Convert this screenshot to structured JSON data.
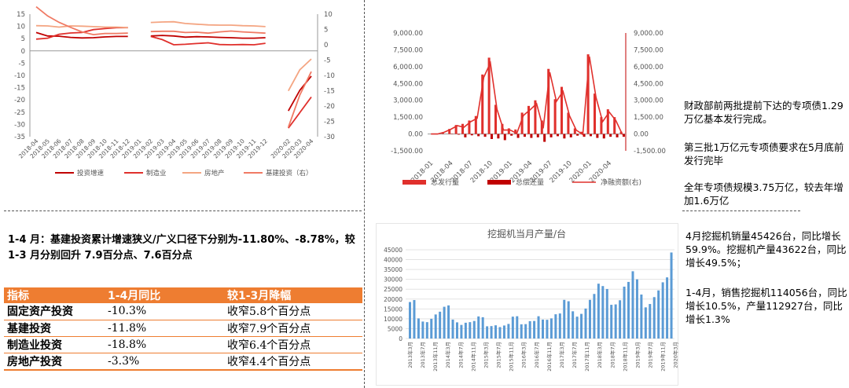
{
  "colors": {
    "dark_red": "#c00000",
    "red": "#e0302c",
    "light_orange": "#f4a582",
    "salmon": "#f07a64",
    "table_orange": "#ee7d31",
    "excavator_blue": "#5b9bd5"
  },
  "chart_data": [
    {
      "type": "line",
      "x": [
        "2018-04",
        "2018-05",
        "2018-06",
        "2018-07",
        "2018-08",
        "2018-09",
        "2018-10",
        "2018-11",
        "2018-12",
        "2019-01",
        "2019-02",
        "2019-03",
        "2019-04",
        "2019-05",
        "2019-06",
        "2019-07",
        "2019-08",
        "2019-09",
        "2019-10",
        "2019-11",
        "2019-12",
        "2020-01",
        "2020-02",
        "2020-03",
        "2020-04"
      ],
      "x_ticks": [
        "2018-04",
        "2018-05",
        "2018-06",
        "2018-07",
        "2018-08",
        "2018-09",
        "2018-10",
        "2018-11",
        "2018-12",
        "2019-01",
        "2019-02",
        "2019-03",
        "2019-04",
        "2019-05",
        "2019-06",
        "2019-07",
        "2019-08",
        "2019-09",
        "2019-10",
        "2019-11",
        "2019-12",
        "2020-02",
        "2020-03",
        "2020-04"
      ],
      "y_ticks": [
        "15",
        "10",
        "5",
        "0",
        "-5",
        "-10",
        "-15",
        "-20",
        "-25",
        "-30",
        "-35"
      ],
      "y2_ticks": [
        "10",
        "5",
        "0",
        "-5",
        "-10",
        "-15",
        "-20",
        "-25",
        "-30"
      ],
      "ylim": [
        -35,
        15
      ],
      "y2lim": [
        -30,
        10
      ],
      "grid": false,
      "legend_position": "bottom",
      "series": [
        {
          "name": "投资增速",
          "axis": "left",
          "color": "#c00000",
          "values": [
            7.5,
            6.1,
            6.0,
            5.5,
            5.3,
            5.4,
            5.7,
            5.9,
            5.9,
            null,
            6.1,
            6.3,
            6.1,
            5.6,
            5.8,
            5.7,
            5.5,
            5.4,
            5.2,
            5.2,
            5.4,
            null,
            -24.5,
            -16.1,
            -10.3
          ]
        },
        {
          "name": "制造业",
          "axis": "left",
          "color": "#e0302c",
          "values": [
            4.8,
            5.2,
            6.8,
            7.3,
            7.5,
            8.7,
            9.1,
            9.5,
            9.5,
            null,
            5.9,
            4.6,
            2.5,
            2.7,
            3.0,
            3.3,
            2.6,
            2.5,
            2.6,
            2.5,
            3.1,
            null,
            -31.5,
            -25.2,
            -18.8
          ]
        },
        {
          "name": "房地产",
          "axis": "left",
          "color": "#f4a582",
          "values": [
            10.3,
            10.2,
            9.7,
            10.2,
            10.1,
            9.9,
            9.7,
            9.7,
            9.5,
            null,
            11.6,
            11.8,
            11.9,
            11.2,
            10.9,
            10.6,
            10.5,
            10.5,
            10.3,
            10.2,
            9.9,
            null,
            -16.3,
            -7.7,
            -3.3
          ]
        },
        {
          "name": "基建投资（右）",
          "axis": "right",
          "color": "#f07a64",
          "values": [
            12.4,
            9.4,
            7.3,
            5.7,
            4.2,
            3.3,
            3.7,
            3.7,
            3.8,
            null,
            4.3,
            4.4,
            4.4,
            4.0,
            4.1,
            3.8,
            4.2,
            4.5,
            4.2,
            4.0,
            3.8,
            null,
            -26.9,
            -16.4,
            -8.78
          ]
        }
      ]
    },
    {
      "type": "bar",
      "x_ticks": [
        "2018-01",
        "2018-04",
        "2018-07",
        "2018-10",
        "2019-01",
        "2019-04",
        "2019-07",
        "2019-10",
        "2020-01",
        "2020-04"
      ],
      "y_ticks": [
        "9,000.00",
        "7,500.00",
        "6,000.00",
        "4,500.00",
        "3,000.00",
        "1,500.00",
        "0.00",
        "-1,500.00"
      ],
      "y2_ticks": [
        "9,000.00",
        "7,500.00",
        "6,000.00",
        "4,500.00",
        "3,000.00",
        "1,500.00",
        "0.00",
        "-1,500.00"
      ],
      "ylim": [
        -1500,
        9000
      ],
      "grid": false,
      "legend_position": "bottom",
      "series": [
        {
          "name": "总发行量",
          "color": "#e0302c",
          "values": [
            0,
            0,
            150,
            450,
            800,
            900,
            1200,
            1600,
            5300,
            6800,
            2600,
            900,
            500,
            400,
            1900,
            2500,
            3000,
            1200,
            5800,
            3100,
            4200,
            1900,
            500,
            200,
            7100,
            3600,
            1500,
            2200,
            1500,
            200
          ]
        },
        {
          "name": "总偿还量",
          "color": "#c00000",
          "values": [
            0,
            0,
            0,
            -30,
            -60,
            -300,
            -120,
            -200,
            -250,
            -450,
            -400,
            -550,
            -150,
            -350,
            -250,
            -350,
            -300,
            -700,
            -300,
            -200,
            -400,
            -300,
            -150,
            -250,
            -200,
            -350,
            -400,
            -250,
            -300,
            -250
          ]
        },
        {
          "name": "净融资额(右)",
          "color": "#e0302c",
          "values": [
            0,
            0,
            150,
            420,
            740,
            600,
            1080,
            1400,
            5050,
            6350,
            2200,
            350,
            350,
            50,
            1650,
            2150,
            2700,
            500,
            5500,
            2900,
            3800,
            1600,
            350,
            -50,
            6900,
            3250,
            1100,
            1950,
            1200,
            -50
          ]
        }
      ]
    },
    {
      "type": "bar",
      "title": "挖掘机当月产量/台",
      "x_ticks": [
        "2013年3月",
        "2013年7月",
        "2013年11月",
        "2014年3月",
        "2014年7月",
        "2014年11月",
        "2015年3月",
        "2015年7月",
        "2015年11月",
        "2016年3月",
        "2016年7月",
        "2016年11月",
        "2017年3月",
        "2017年7月",
        "2017年11月",
        "2018年3月",
        "2018年7月",
        "2018年11月",
        "2019年3月",
        "2019年7月",
        "2019年11月",
        "2020年3月"
      ],
      "y_ticks": [
        "45000",
        "40000",
        "35000",
        "30000",
        "25000",
        "20000",
        "15000",
        "10000",
        "5000",
        "0"
      ],
      "ylim": [
        0,
        45000
      ],
      "grid": true,
      "legend_position": "none",
      "series": [
        {
          "name": "挖掘机当月产量",
          "color": "#5b9bd5",
          "values": [
            18500,
            19500,
            10200,
            8600,
            8300,
            10000,
            12200,
            13600,
            16100,
            16800,
            9600,
            8200,
            6900,
            8000,
            8300,
            8900,
            11200,
            10800,
            6200,
            6300,
            6700,
            5800,
            6600,
            7400,
            11100,
            11300,
            7200,
            7300,
            8800,
            8900,
            11300,
            9600,
            9500,
            10200,
            12300,
            12700,
            19600,
            18900,
            13800,
            11100,
            12500,
            15200,
            19600,
            22600,
            27800,
            26600,
            25100,
            17100,
            17300,
            19400,
            26300,
            28700,
            34100,
            30000,
            22300,
            15800,
            17500,
            21000,
            24400,
            28500,
            31000,
            43622
          ]
        }
      ]
    }
  ],
  "investment_chart": {
    "legend": [
      "投资增速",
      "制造业",
      "房地产",
      "基建投资（右）"
    ]
  },
  "bond_chart": {
    "legend": [
      "总发行量",
      "总偿还量",
      "净融资额(右)"
    ]
  },
  "bond_notes": {
    "note1": "财政部前两批提前下达的专项债1.29万亿基本发行完成。",
    "note2": "第三批1万亿元专项债要求在5月底前发行完毕",
    "note3": "全年专项债规模3.75万亿，较去年增加1.6万亿"
  },
  "investment_headline": "1-4 月：基建投资累计增速狭义/广义口径下分别为-11.80%、-8.78%，较1-3 月分别回升 7.9百分点、7.6百分点",
  "investment_table": {
    "headers": [
      "指标",
      "1-4月同比",
      "较1-3月降幅"
    ],
    "rows": [
      {
        "name": "固定资产投资",
        "yoy": "-10.3%",
        "change": "收窄5.8个百分点"
      },
      {
        "name": "基建投资",
        "yoy": "-11.8%",
        "change": "收窄7.9个百分点"
      },
      {
        "name": "制造业投资",
        "yoy": "-18.8%",
        "change": "收窄6.4个百分点"
      },
      {
        "name": "房地产投资",
        "yoy": "-3.3%",
        "change": "收窄4.4个百分点"
      }
    ]
  },
  "excavator_chart": {
    "title": "挖掘机当月产量/台"
  },
  "excavator_notes": {
    "note1": "4月挖掘机销量45426台，同比增长59.9%。挖掘机产量43622台，同比增长49.5%；",
    "note2": "1-4月，销售挖掘机114056台，同比增长10.5%，产量112927台，同比增长1.3%"
  }
}
